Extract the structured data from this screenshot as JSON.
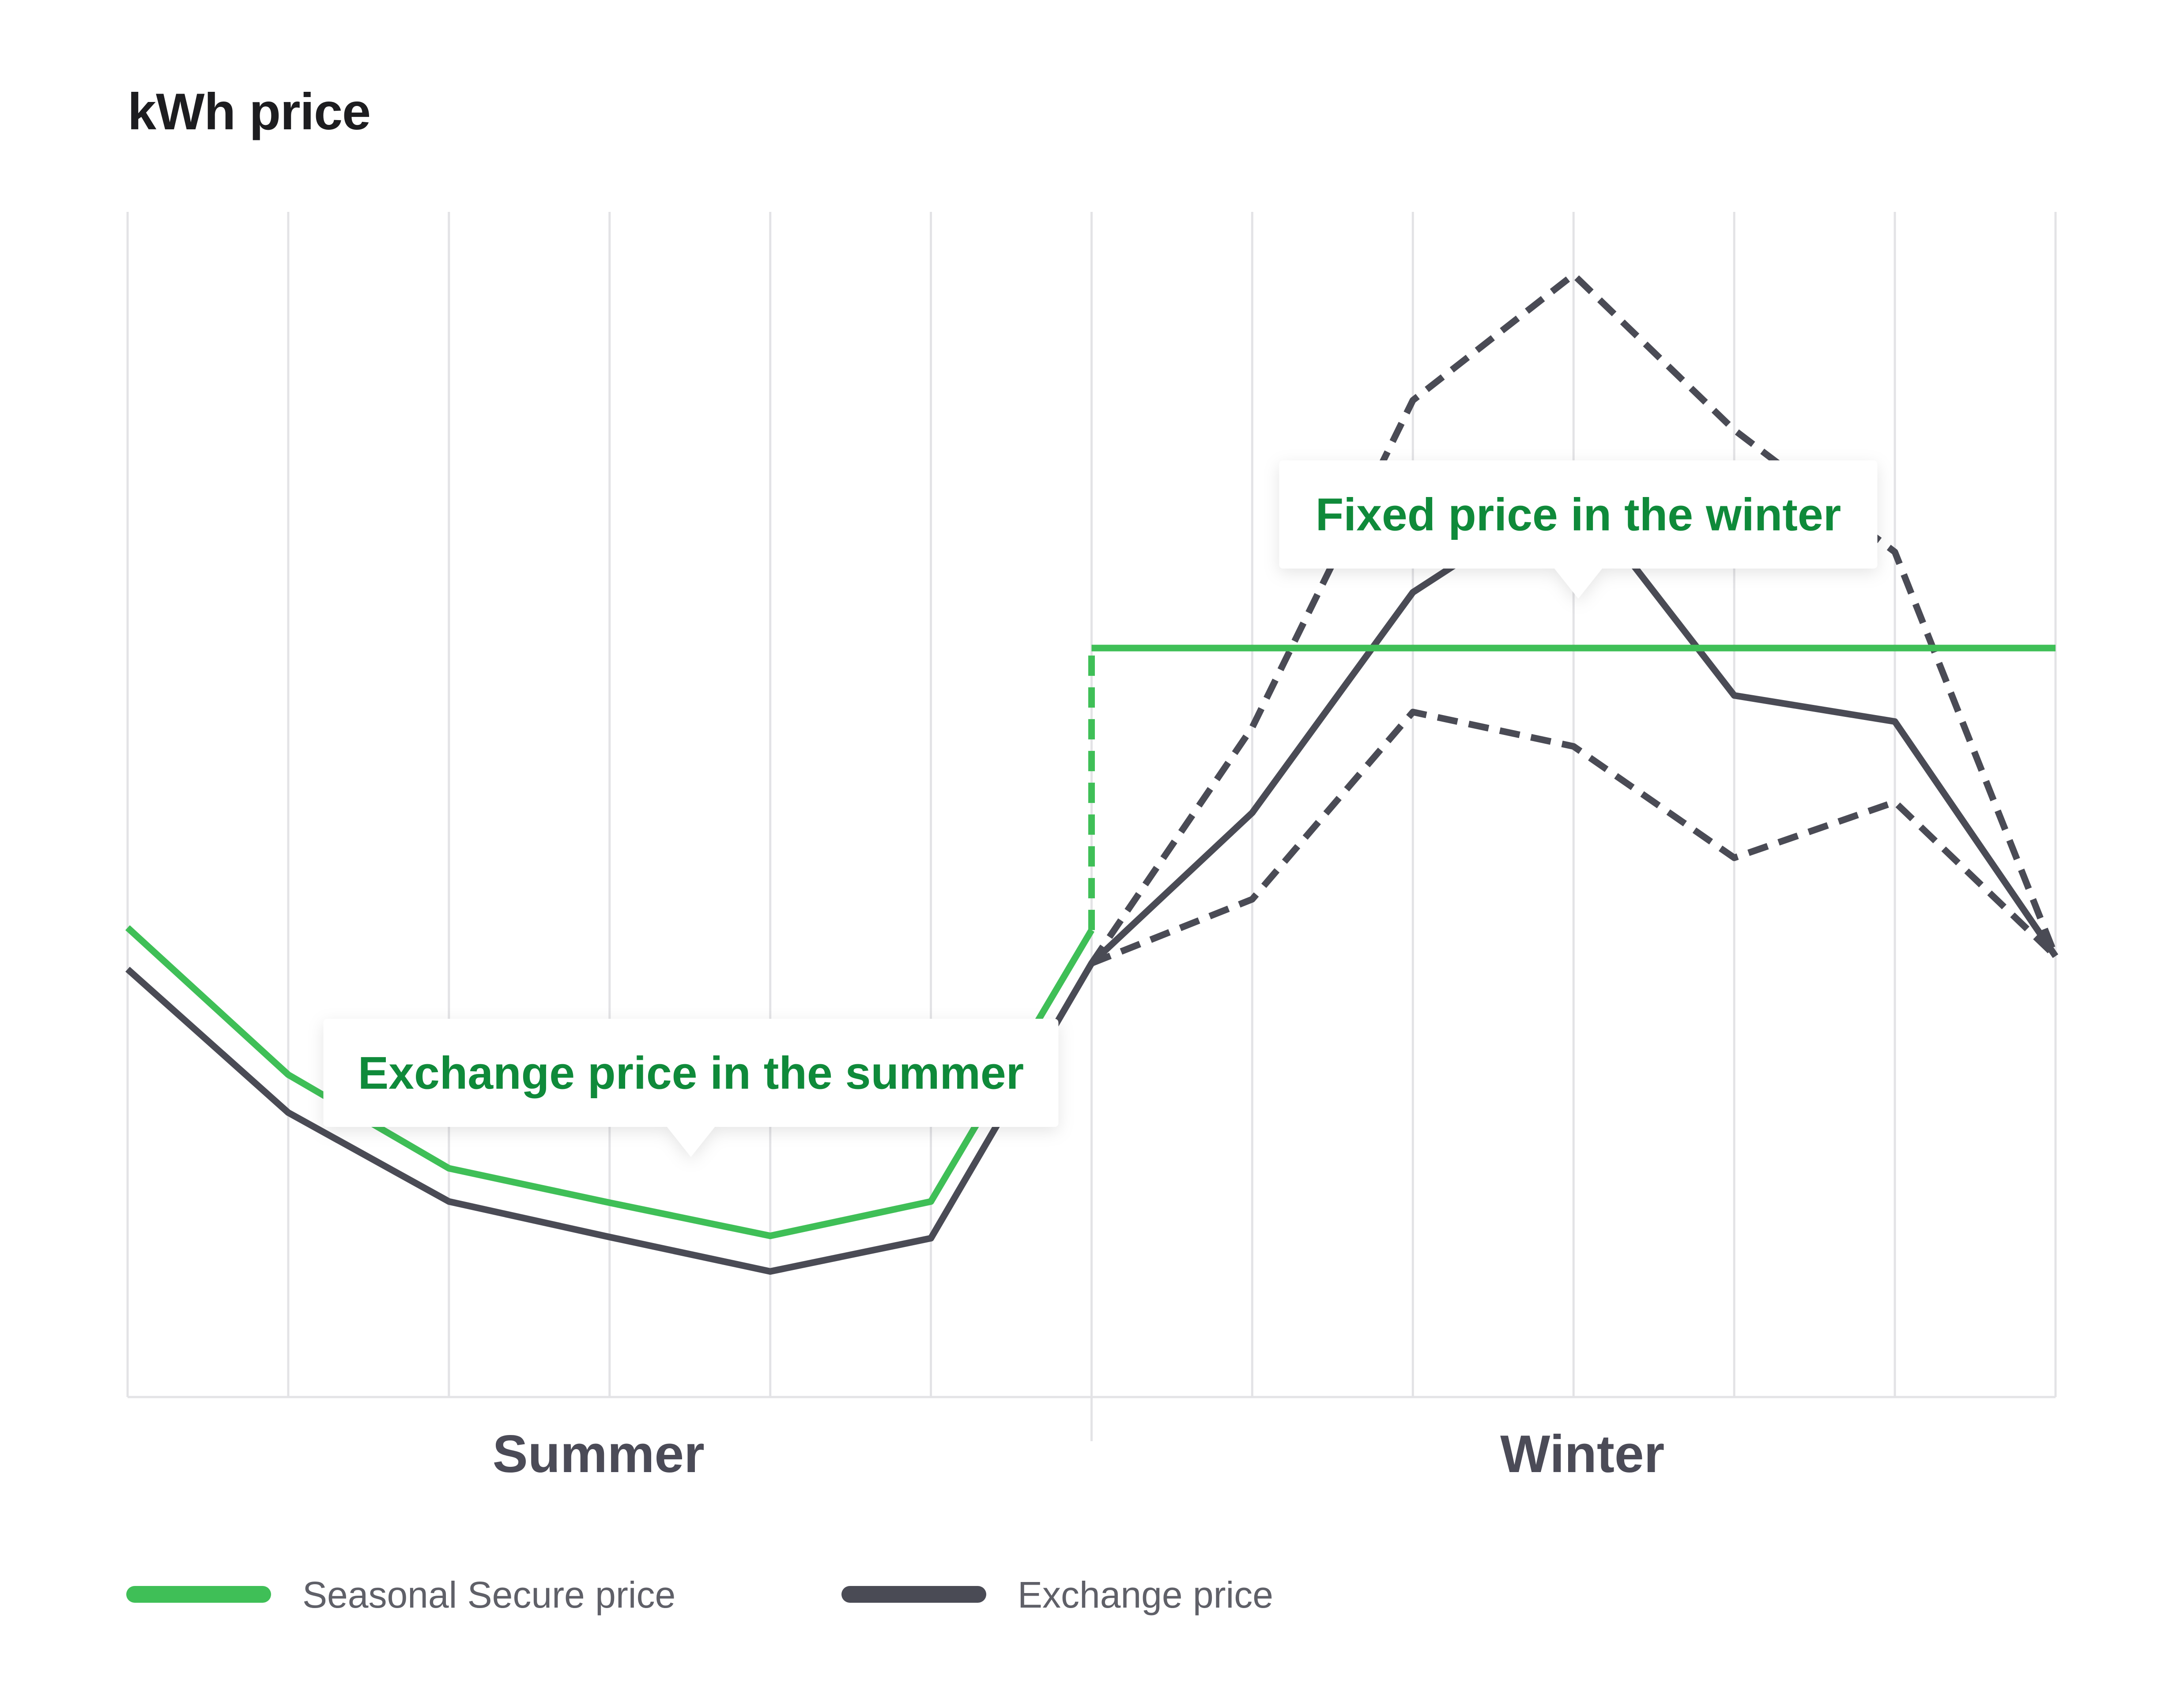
{
  "title": "kWh price",
  "colors": {
    "seasonal": "#3fbf57",
    "exchange": "#4a4b55",
    "callout_text": "#0f8a3a",
    "grid": "#e3e3e6",
    "section_label": "#4b4b57",
    "legend_text": "#5f6068"
  },
  "chart_data": {
    "type": "line",
    "title": "kWh price",
    "xlabel": "",
    "ylabel": "",
    "x": [
      0,
      1,
      2,
      3,
      4,
      5,
      6,
      7,
      8,
      9,
      10,
      11,
      12
    ],
    "ylim": [
      0,
      100
    ],
    "grid": true,
    "legend_position": "bottom-left",
    "sections": [
      {
        "label": "Summer",
        "from": 0,
        "to": 6
      },
      {
        "label": "Winter",
        "from": 6,
        "to": 12
      }
    ],
    "series": [
      {
        "name": "Seasonal Secure price",
        "style": "solid",
        "points": [
          [
            0,
            39.6
          ],
          [
            1,
            27.2
          ],
          [
            2,
            19.3
          ],
          [
            3,
            16.4
          ],
          [
            4,
            13.6
          ],
          [
            5,
            16.5
          ],
          [
            6,
            39.4
          ],
          [
            6,
            63.2
          ],
          [
            12,
            63.2
          ]
        ]
      },
      {
        "name": "",
        "style": "dashed",
        "points": [
          [
            6,
            39.4
          ],
          [
            6,
            63.2
          ]
        ]
      },
      {
        "name": "Exchange price",
        "style": "solid",
        "points": [
          [
            0,
            36.1
          ],
          [
            1,
            24.0
          ],
          [
            2,
            16.5
          ],
          [
            3,
            13.5
          ],
          [
            4,
            10.6
          ],
          [
            5,
            13.4
          ],
          [
            6,
            36.6
          ],
          [
            7,
            49.3
          ],
          [
            8,
            67.9
          ],
          [
            9,
            76.7
          ],
          [
            10,
            59.2
          ],
          [
            11,
            57.0
          ],
          [
            12,
            37.2
          ]
        ]
      },
      {
        "name": "",
        "style": "dashed",
        "points": [
          [
            6,
            36.6
          ],
          [
            7,
            56.5
          ],
          [
            8,
            84.1
          ],
          [
            9,
            94.7
          ],
          [
            10,
            81.6
          ],
          [
            11,
            71.3
          ],
          [
            12,
            37.2
          ]
        ]
      },
      {
        "name": "",
        "style": "dashed",
        "points": [
          [
            6,
            36.6
          ],
          [
            7,
            42.0
          ],
          [
            8,
            57.8
          ],
          [
            9,
            54.9
          ],
          [
            10,
            45.5
          ],
          [
            11,
            50.2
          ],
          [
            12,
            37.2
          ]
        ]
      }
    ],
    "annotations": [
      {
        "text": "Exchange price in the summer",
        "x": 3.5
      },
      {
        "text": "Fixed price in the winter",
        "x": 9
      }
    ],
    "legend": [
      "Seasonal Secure price",
      "Exchange price"
    ]
  }
}
